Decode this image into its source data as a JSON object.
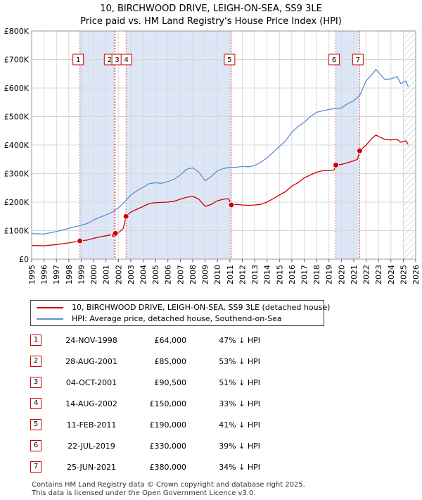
{
  "chart_data": {
    "type": "line",
    "title": "10, BIRCHWOOD DRIVE, LEIGH-ON-SEA, SS9 3LE",
    "subtitle": "Price paid vs. HM Land Registry's House Price Index (HPI)",
    "xlabel": "",
    "ylabel": "",
    "xlim": [
      1995,
      2026
    ],
    "ylim": [
      0,
      800000
    ],
    "y_ticks": [
      {
        "value": 0,
        "label": "£0"
      },
      {
        "value": 100000,
        "label": "£100K"
      },
      {
        "value": 200000,
        "label": "£200K"
      },
      {
        "value": 300000,
        "label": "£300K"
      },
      {
        "value": 400000,
        "label": "£400K"
      },
      {
        "value": 500000,
        "label": "£500K"
      },
      {
        "value": 600000,
        "label": "£600K"
      },
      {
        "value": 700000,
        "label": "£700K"
      },
      {
        "value": 800000,
        "label": "£800K"
      }
    ],
    "x_ticks": [
      "1995",
      "1996",
      "1997",
      "1998",
      "1999",
      "2000",
      "2001",
      "2002",
      "2003",
      "2004",
      "2005",
      "2006",
      "2007",
      "2008",
      "2009",
      "2010",
      "2011",
      "2012",
      "2013",
      "2014",
      "2015",
      "2016",
      "2017",
      "2018",
      "2019",
      "2020",
      "2021",
      "2022",
      "2023",
      "2024",
      "2025",
      "2026"
    ],
    "grid": true,
    "hatched_after": 2025.0,
    "sales": [
      {
        "id": "1",
        "year": 1998.9,
        "value": 64000
      },
      {
        "id": "2",
        "year": 2001.66,
        "value": 85000
      },
      {
        "id": "3",
        "year": 2001.76,
        "value": 90500
      },
      {
        "id": "4",
        "year": 2002.62,
        "value": 150000
      },
      {
        "id": "5",
        "year": 2011.12,
        "value": 190000
      },
      {
        "id": "6",
        "year": 2019.56,
        "value": 330000
      },
      {
        "id": "7",
        "year": 2021.48,
        "value": 380000
      }
    ],
    "shaded_spans": [
      [
        1998.9,
        2001.66
      ],
      [
        2002.62,
        2011.12
      ],
      [
        2019.56,
        2021.48
      ]
    ],
    "series": [
      {
        "name": "10, BIRCHWOOD DRIVE, LEIGH-ON-SEA, SS9 3LE (detached house)",
        "color": "#cc0000",
        "points": [
          [
            1995,
            48000
          ],
          [
            1996,
            47000
          ],
          [
            1997,
            51000
          ],
          [
            1998,
            57000
          ],
          [
            1998.9,
            64000
          ],
          [
            1999.5,
            67000
          ],
          [
            2000,
            73000
          ],
          [
            2000.5,
            78000
          ],
          [
            2001,
            82000
          ],
          [
            2001.5,
            86000
          ],
          [
            2001.66,
            85000
          ],
          [
            2001.76,
            90500
          ],
          [
            2002,
            92000
          ],
          [
            2002.4,
            108000
          ],
          [
            2002.62,
            150000
          ],
          [
            2003,
            165000
          ],
          [
            2003.5,
            175000
          ],
          [
            2004,
            185000
          ],
          [
            2004.5,
            195000
          ],
          [
            2005,
            198000
          ],
          [
            2005.5,
            199000
          ],
          [
            2006,
            200000
          ],
          [
            2006.5,
            203000
          ],
          [
            2007,
            210000
          ],
          [
            2007.5,
            217000
          ],
          [
            2008,
            220000
          ],
          [
            2008.5,
            210000
          ],
          [
            2009,
            185000
          ],
          [
            2009.5,
            192000
          ],
          [
            2010,
            205000
          ],
          [
            2010.5,
            210000
          ],
          [
            2010.9,
            212000
          ],
          [
            2011.12,
            190000
          ],
          [
            2011.5,
            192000
          ],
          [
            2012,
            190000
          ],
          [
            2012.5,
            189000
          ],
          [
            2013,
            190000
          ],
          [
            2013.5,
            192000
          ],
          [
            2014,
            200000
          ],
          [
            2014.5,
            212000
          ],
          [
            2015,
            225000
          ],
          [
            2015.5,
            237000
          ],
          [
            2016,
            256000
          ],
          [
            2016.5,
            268000
          ],
          [
            2017,
            285000
          ],
          [
            2017.5,
            295000
          ],
          [
            2018,
            305000
          ],
          [
            2018.5,
            310000
          ],
          [
            2019,
            310000
          ],
          [
            2019.4,
            312000
          ],
          [
            2019.56,
            330000
          ],
          [
            2020,
            332000
          ],
          [
            2020.5,
            338000
          ],
          [
            2021,
            345000
          ],
          [
            2021.3,
            350000
          ],
          [
            2021.48,
            380000
          ],
          [
            2022,
            400000
          ],
          [
            2022.5,
            425000
          ],
          [
            2022.8,
            435000
          ],
          [
            2023,
            430000
          ],
          [
            2023.5,
            420000
          ],
          [
            2024,
            418000
          ],
          [
            2024.5,
            420000
          ],
          [
            2024.8,
            410000
          ],
          [
            2025.2,
            415000
          ],
          [
            2025.4,
            402000
          ]
        ]
      },
      {
        "name": "HPI: Average price, detached house, Southend-on-Sea",
        "color": "#5b8fd0",
        "points": [
          [
            1995,
            90000
          ],
          [
            1996,
            88000
          ],
          [
            1997,
            97000
          ],
          [
            1998,
            108000
          ],
          [
            1998.9,
            118000
          ],
          [
            1999.5,
            125000
          ],
          [
            2000,
            137000
          ],
          [
            2000.5,
            147000
          ],
          [
            2001,
            155000
          ],
          [
            2001.5,
            165000
          ],
          [
            2002,
            180000
          ],
          [
            2002.5,
            200000
          ],
          [
            2003,
            225000
          ],
          [
            2003.5,
            240000
          ],
          [
            2004,
            252000
          ],
          [
            2004.5,
            265000
          ],
          [
            2005,
            268000
          ],
          [
            2005.5,
            266000
          ],
          [
            2006,
            272000
          ],
          [
            2006.5,
            280000
          ],
          [
            2007,
            295000
          ],
          [
            2007.5,
            315000
          ],
          [
            2008,
            320000
          ],
          [
            2008.5,
            305000
          ],
          [
            2009,
            275000
          ],
          [
            2009.5,
            290000
          ],
          [
            2010,
            310000
          ],
          [
            2010.5,
            318000
          ],
          [
            2011,
            322000
          ],
          [
            2011.5,
            322000
          ],
          [
            2012,
            325000
          ],
          [
            2012.5,
            324000
          ],
          [
            2013,
            328000
          ],
          [
            2013.5,
            340000
          ],
          [
            2014,
            355000
          ],
          [
            2014.5,
            375000
          ],
          [
            2015,
            395000
          ],
          [
            2015.5,
            415000
          ],
          [
            2016,
            445000
          ],
          [
            2016.5,
            465000
          ],
          [
            2017,
            480000
          ],
          [
            2017.5,
            500000
          ],
          [
            2018,
            515000
          ],
          [
            2018.5,
            520000
          ],
          [
            2019,
            525000
          ],
          [
            2019.5,
            528000
          ],
          [
            2020,
            530000
          ],
          [
            2020.5,
            545000
          ],
          [
            2021,
            555000
          ],
          [
            2021.5,
            575000
          ],
          [
            2022,
            625000
          ],
          [
            2022.5,
            650000
          ],
          [
            2022.8,
            665000
          ],
          [
            2023,
            655000
          ],
          [
            2023.5,
            630000
          ],
          [
            2024,
            632000
          ],
          [
            2024.5,
            640000
          ],
          [
            2024.8,
            615000
          ],
          [
            2025.2,
            625000
          ],
          [
            2025.4,
            605000
          ]
        ]
      }
    ]
  },
  "legend": {
    "property_label": "10, BIRCHWOOD DRIVE, LEIGH-ON-SEA, SS9 3LE (detached house)",
    "hpi_label": "HPI: Average price, detached house, Southend-on-Sea",
    "property_color": "#cc0000",
    "hpi_color": "#5b8fd0"
  },
  "transactions": [
    {
      "id": "1",
      "date": "24-NOV-1998",
      "price": "£64,000",
      "hpi": "47% ↓ HPI"
    },
    {
      "id": "2",
      "date": "28-AUG-2001",
      "price": "£85,000",
      "hpi": "53% ↓ HPI"
    },
    {
      "id": "3",
      "date": "04-OCT-2001",
      "price": "£90,500",
      "hpi": "51% ↓ HPI"
    },
    {
      "id": "4",
      "date": "14-AUG-2002",
      "price": "£150,000",
      "hpi": "33% ↓ HPI"
    },
    {
      "id": "5",
      "date": "11-FEB-2011",
      "price": "£190,000",
      "hpi": "41% ↓ HPI"
    },
    {
      "id": "6",
      "date": "22-JUL-2019",
      "price": "£330,000",
      "hpi": "39% ↓ HPI"
    },
    {
      "id": "7",
      "date": "25-JUN-2021",
      "price": "£380,000",
      "hpi": "34% ↓ HPI"
    }
  ],
  "footer": {
    "line1": "Contains HM Land Registry data © Crown copyright and database right 2025.",
    "line2": "This data is licensed under the Open Government Licence v3.0."
  }
}
